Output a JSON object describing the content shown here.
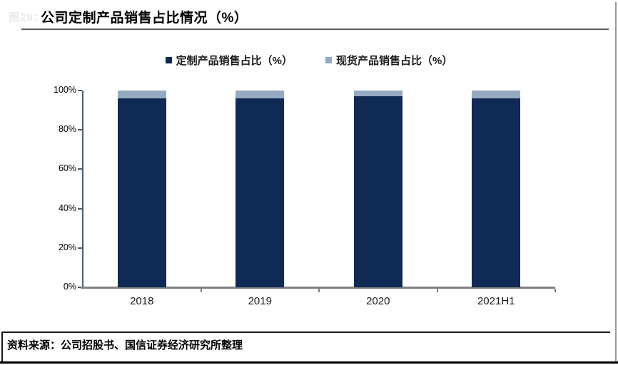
{
  "figure": {
    "watermark": "图29：",
    "title": "公司定制产品销售占比情况（%）",
    "source": "资料来源：公司招股书、国信证券经济研究所整理"
  },
  "colors": {
    "primary_series": "#0e2a55",
    "secondary_series": "#93aac1",
    "y_axis": "#3f5d7d",
    "x_baseline": "#808080",
    "title_rule": "#595959"
  },
  "chart_data": {
    "type": "bar",
    "subtype": "stacked-column",
    "title": "公司定制产品销售占比情况（%）",
    "categories": [
      "2018",
      "2019",
      "2020",
      "2021H1"
    ],
    "series": [
      {
        "name": "定制产品销售占比（%）",
        "color": "#0e2a55",
        "values": [
          96,
          96,
          97,
          96
        ]
      },
      {
        "name": "现货产品销售占比（%）",
        "color": "#93aac1",
        "values": [
          4,
          4,
          3,
          4
        ]
      }
    ],
    "xlabel": "",
    "ylabel": "",
    "ylim": [
      0,
      100
    ],
    "y_ticks": [
      "0%",
      "20%",
      "40%",
      "60%",
      "80%",
      "100%"
    ],
    "y_tick_values": [
      0,
      20,
      40,
      60,
      80,
      100
    ],
    "legend_position": "top-center",
    "grid": false
  }
}
